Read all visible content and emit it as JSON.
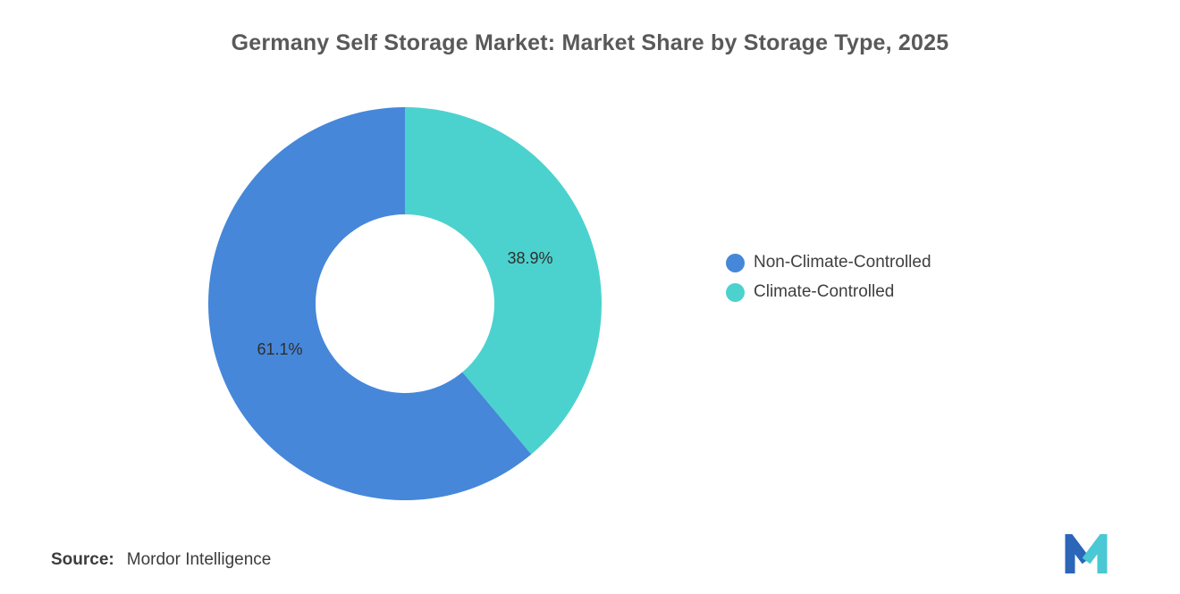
{
  "title": "Germany Self Storage Market: Market Share by Storage Type, 2025",
  "chart_data": {
    "type": "pie",
    "donut": true,
    "title": "Germany Self Storage Market: Market Share by Storage Type, 2025",
    "categories": [
      "Non-Climate-Controlled",
      "Climate-Controlled"
    ],
    "values": [
      61.1,
      38.9
    ],
    "unit": "%",
    "start_angle": "top",
    "direction": "clockwise",
    "legend_position": "right",
    "inner_radius_ratio": 0.455,
    "slices": [
      {
        "name": "Climate-Controlled",
        "value": 38.9,
        "label": "38.9%",
        "color": "#4BD2CE"
      },
      {
        "name": "Non-Climate-Controlled",
        "value": 61.1,
        "label": "61.1%",
        "color": "#4687D9"
      }
    ]
  },
  "legend": {
    "items": [
      {
        "label": "Non-Climate-Controlled",
        "color": "#4687D9"
      },
      {
        "label": "Climate-Controlled",
        "color": "#4BD2CE"
      }
    ]
  },
  "source": {
    "label": "Source:",
    "value": "Mordor Intelligence"
  },
  "logo": {
    "name": "mordor-intelligence-logo",
    "colors": [
      "#2B66B8",
      "#4AC8D4"
    ]
  },
  "label_style": {
    "color": "#2e2e2e",
    "font_size": 18
  }
}
